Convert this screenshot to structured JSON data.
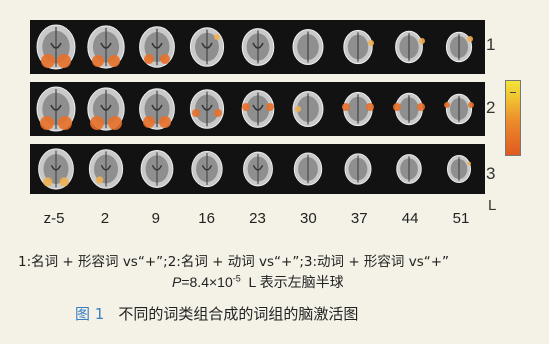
{
  "figure": {
    "row_labels": [
      "1",
      "2",
      "3"
    ],
    "hemisphere_label": "L",
    "slice_labels": [
      "z-5",
      "2",
      "9",
      "16",
      "23",
      "30",
      "37",
      "44",
      "51"
    ]
  },
  "legend": {
    "text": "1:名词 + 形容词 vs“+”;2:名词 + 动词 vs“+”;3:动词 + 形容词 vs“+”"
  },
  "stats": {
    "p_label": "P",
    "p_value": "=8.4×10",
    "p_exp": "-5",
    "note": "L 表示左脑半球"
  },
  "caption": {
    "number": "图 1",
    "text": "不同的词类组合成的词组的脑激活图"
  },
  "colors": {
    "activation": "#e8702a",
    "activation_light": "#f0b050",
    "caption_number": "#3a7fc4"
  }
}
